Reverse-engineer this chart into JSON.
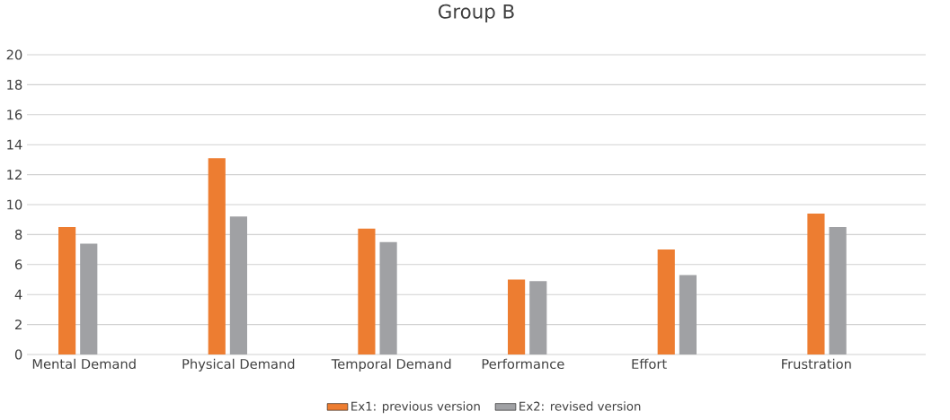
{
  "chart_data": {
    "type": "bar",
    "title": "Group B",
    "categories": [
      "Mental Demand",
      "Physical Demand",
      "Temporal Demand",
      "Performance",
      "Effort",
      "Frustration"
    ],
    "series": [
      {
        "name": "Ex1: previous version",
        "color": "#ed7d31",
        "values": [
          8.5,
          13.1,
          8.4,
          5.0,
          7.0,
          9.4
        ]
      },
      {
        "name": "Ex2: revised version",
        "color": "#a0a1a4",
        "values": [
          7.4,
          9.2,
          7.5,
          4.9,
          5.3,
          8.5
        ]
      }
    ],
    "ylim": [
      0,
      20
    ],
    "yticks": [
      0,
      2,
      4,
      6,
      8,
      10,
      12,
      14,
      16,
      18,
      20
    ],
    "grid": "y",
    "legend": "bottom"
  }
}
